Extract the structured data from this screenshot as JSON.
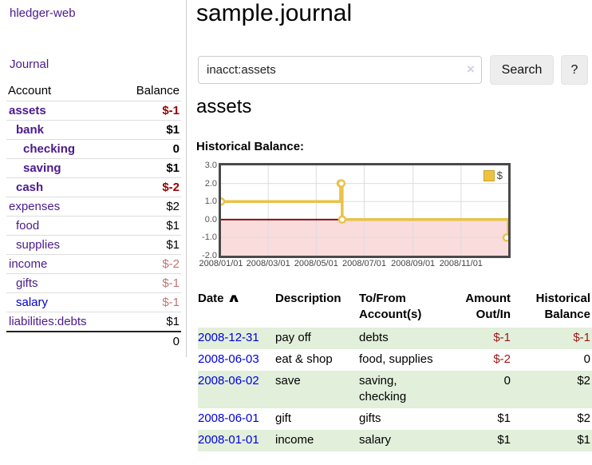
{
  "app": {
    "title": "hledger-web",
    "nav_journal": "Journal"
  },
  "sidebar": {
    "headers": {
      "account": "Account",
      "balance": "Balance"
    },
    "accounts": [
      {
        "name": "assets",
        "balance": "$-1",
        "indent": 0,
        "bold": true,
        "neg": "strong",
        "link": "purple"
      },
      {
        "name": "bank",
        "balance": "$1",
        "indent": 1,
        "bold": true,
        "neg": "none",
        "link": "purple"
      },
      {
        "name": "checking",
        "balance": "0",
        "indent": 2,
        "bold": true,
        "neg": "none",
        "link": "purple"
      },
      {
        "name": "saving",
        "balance": "$1",
        "indent": 2,
        "bold": true,
        "neg": "none",
        "link": "purple"
      },
      {
        "name": "cash",
        "balance": "$-2",
        "indent": 1,
        "bold": true,
        "neg": "strong",
        "link": "purple"
      },
      {
        "name": "expenses",
        "balance": "$2",
        "indent": 0,
        "bold": false,
        "neg": "none",
        "link": "purple"
      },
      {
        "name": "food",
        "balance": "$1",
        "indent": 1,
        "bold": false,
        "neg": "none",
        "link": "purple"
      },
      {
        "name": "supplies",
        "balance": "$1",
        "indent": 1,
        "bold": false,
        "neg": "none",
        "link": "purple"
      },
      {
        "name": "income",
        "balance": "$-2",
        "indent": 0,
        "bold": false,
        "neg": "soft",
        "link": "purple"
      },
      {
        "name": "gifts",
        "balance": "$-1",
        "indent": 1,
        "bold": false,
        "neg": "soft",
        "link": "purple"
      },
      {
        "name": "salary",
        "balance": "$-1",
        "indent": 1,
        "bold": false,
        "neg": "soft",
        "link": "blue"
      },
      {
        "name": "liabilities:debts",
        "balance": "$1",
        "indent": 0,
        "bold": false,
        "neg": "none",
        "link": "purple"
      }
    ],
    "total": "0"
  },
  "main": {
    "title": "sample.journal",
    "search": {
      "value": "inacct:assets",
      "clear_icon": "×",
      "search_button": "Search",
      "help_button": "?"
    },
    "account_heading": "assets",
    "section_label": "Historical Balance:"
  },
  "chart_data": {
    "type": "line",
    "style": "step",
    "title": "Historical Balance",
    "series": [
      {
        "name": "$",
        "color": "#e9c24a",
        "points": [
          {
            "date": "2008-01-01",
            "value": 1
          },
          {
            "date": "2008-06-01",
            "value": 2
          },
          {
            "date": "2008-06-02",
            "value": 2
          },
          {
            "date": "2008-06-03",
            "value": 0
          },
          {
            "date": "2008-12-31",
            "value": -1
          }
        ]
      }
    ],
    "ylim": [
      -2,
      3
    ],
    "yticks": [
      "3.0",
      "2.0",
      "1.0",
      "0.0",
      "-1.0",
      "-2.0"
    ],
    "xticks": [
      "2008/01/01",
      "2008/03/01",
      "2008/05/01",
      "2008/07/01",
      "2008/09/01",
      "2008/11/01"
    ],
    "legend": {
      "label": "$",
      "position": "top-right",
      "swatch_color": "#edc240"
    },
    "grid": true,
    "negative_fill": "#fadcdd",
    "zero_line_color": "#8b0000",
    "gridline_color": "#dcdcdc"
  },
  "register": {
    "headers": {
      "date": "Date",
      "description": "Description",
      "accounts": "To/From Account(s)",
      "amount": "Amount Out/In",
      "balance": "Historical Balance"
    },
    "sort_icon": "∧",
    "rows": [
      {
        "date": "2008-12-31",
        "description": "pay off",
        "accounts": "debts",
        "amount": "$-1",
        "balance": "$-1",
        "amount_neg": true,
        "balance_neg": true
      },
      {
        "date": "2008-06-03",
        "description": "eat & shop",
        "accounts": "food, supplies",
        "amount": "$-2",
        "balance": "0",
        "amount_neg": true,
        "balance_neg": false
      },
      {
        "date": "2008-06-02",
        "description": "save",
        "accounts": "saving, checking",
        "amount": "0",
        "balance": "$2",
        "amount_neg": false,
        "balance_neg": false
      },
      {
        "date": "2008-06-01",
        "description": "gift",
        "accounts": "gifts",
        "amount": "$1",
        "balance": "$2",
        "amount_neg": false,
        "balance_neg": false
      },
      {
        "date": "2008-01-01",
        "description": "income",
        "accounts": "salary",
        "amount": "$1",
        "balance": "$1",
        "amount_neg": false,
        "balance_neg": false
      }
    ]
  },
  "colors": {
    "link_purple": "#4a1a8c",
    "link_blue": "#0000dd",
    "negative_strong": "#990000",
    "negative_soft": "#bf7474",
    "register_negative": "#9c1616",
    "row_green": "#e1efdb"
  }
}
